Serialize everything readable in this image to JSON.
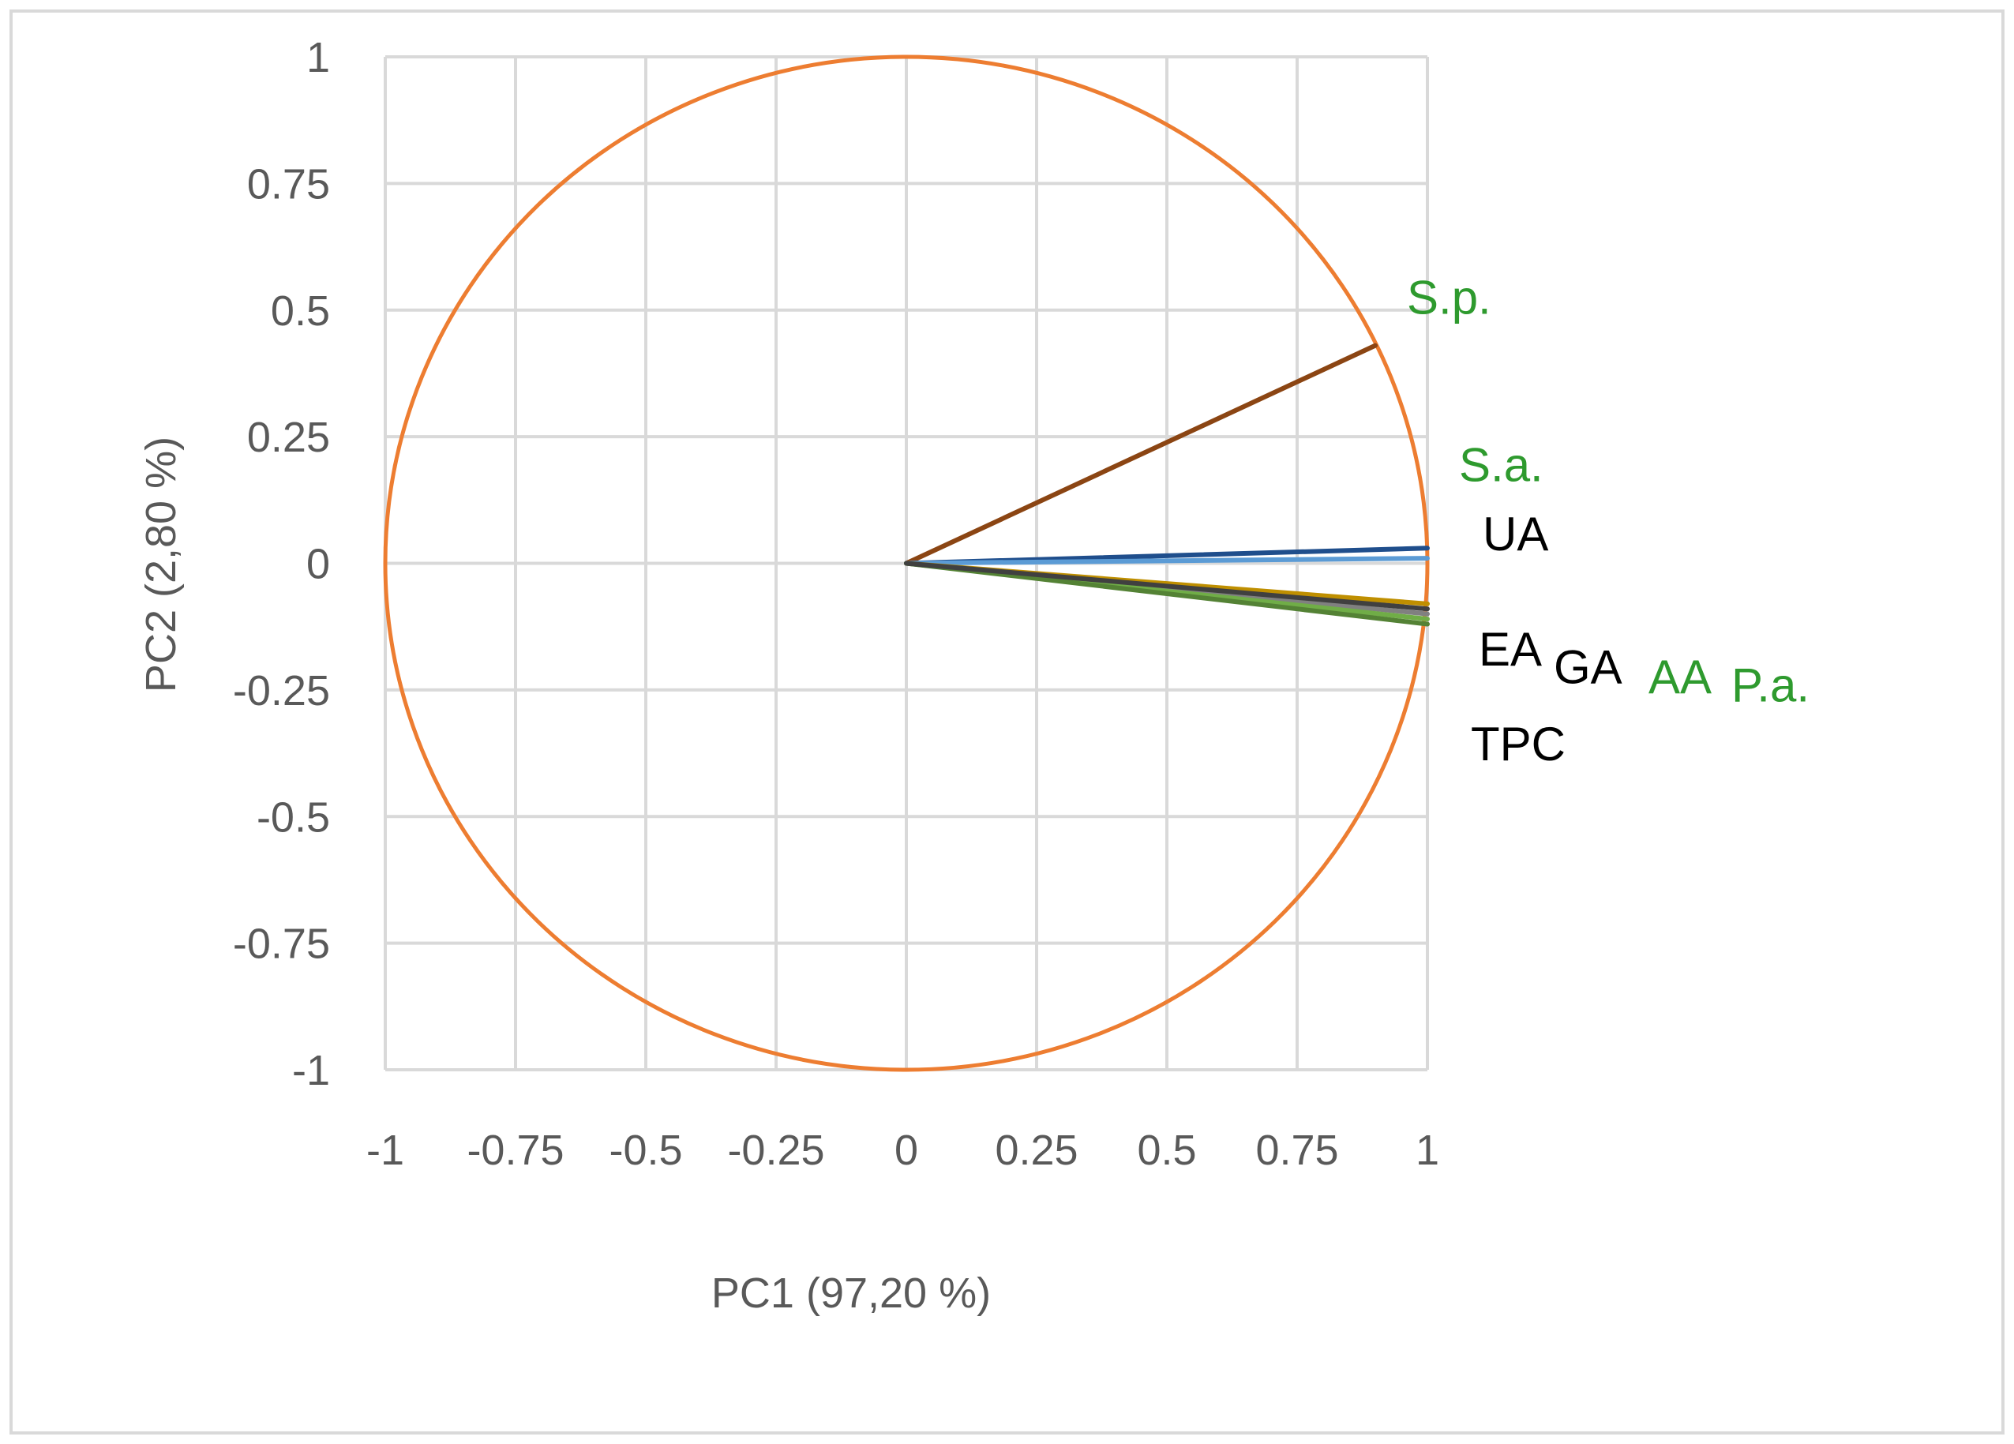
{
  "chart_data": {
    "type": "line",
    "title": "",
    "xlabel": "PC1 (97,20 %)",
    "ylabel": "PC2 (2,80 %)",
    "xlim": [
      -1,
      1
    ],
    "ylim": [
      -1,
      1
    ],
    "x_ticks": [
      "-1",
      "-0.75",
      "-0.5",
      "-0.25",
      "0",
      "0.25",
      "0.5",
      "0.75",
      "1"
    ],
    "y_ticks": [
      "1",
      "0.75",
      "0.5",
      "0.25",
      "0",
      "-0.25",
      "-0.5",
      "-0.75",
      "-1"
    ],
    "grid": true,
    "correlation_circle": {
      "radius": 1,
      "color": "#ED7D31"
    },
    "series": [
      {
        "name": "S.p.",
        "x": [
          0,
          0.9
        ],
        "y": [
          0,
          0.43
        ],
        "color": "#8B4513",
        "label_color": "#2E9A2E"
      },
      {
        "name": "S.a.",
        "x": [
          0,
          1.0
        ],
        "y": [
          0,
          0.03
        ],
        "color": "#1F4E8C",
        "label_color": "#2E9A2E"
      },
      {
        "name": "UA",
        "x": [
          0,
          1.0
        ],
        "y": [
          0,
          0.01
        ],
        "color": "#5B9BD5",
        "label_color": "#000000"
      },
      {
        "name": "EA",
        "x": [
          0,
          1.0
        ],
        "y": [
          0,
          -0.08
        ],
        "color": "#BF8F00",
        "label_color": "#000000"
      },
      {
        "name": "GA",
        "x": [
          0,
          1.0
        ],
        "y": [
          0,
          -0.1
        ],
        "color": "#808080",
        "label_color": "#000000"
      },
      {
        "name": "AA",
        "x": [
          0,
          1.0
        ],
        "y": [
          0,
          -0.11
        ],
        "color": "#70AD47",
        "label_color": "#2E9A2E"
      },
      {
        "name": "P.a.",
        "x": [
          0,
          1.0
        ],
        "y": [
          0,
          -0.12
        ],
        "color": "#548235",
        "label_color": "#2E9A2E"
      },
      {
        "name": "TPC",
        "x": [
          0,
          1.0
        ],
        "y": [
          0,
          -0.09
        ],
        "color": "#404040",
        "label_color": "#000000"
      }
    ]
  }
}
